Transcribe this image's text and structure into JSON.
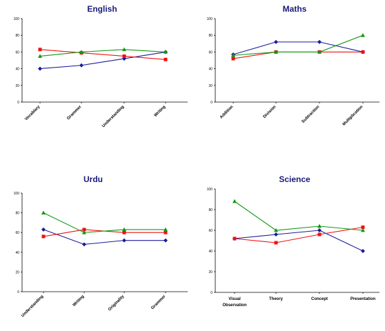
{
  "chart_data": [
    {
      "type": "line",
      "title": "English",
      "categories": [
        "Vocablary",
        "Grammer",
        "Understanding",
        "Writing"
      ],
      "ylim": [
        0,
        100
      ],
      "yticks": [
        "0",
        "20",
        "40",
        "60",
        "80",
        "100"
      ],
      "legend": "none",
      "grid": false,
      "series": [
        {
          "color": "#1a1a99",
          "marker": "diamond",
          "values": [
            40,
            44,
            52,
            60
          ]
        },
        {
          "color": "#ee1111",
          "marker": "square",
          "values": [
            63,
            59,
            55,
            51
          ]
        },
        {
          "color": "#119911",
          "marker": "triangle",
          "values": [
            55,
            60,
            63,
            60
          ]
        }
      ]
    },
    {
      "type": "line",
      "title": "Maths",
      "categories": [
        "Addition",
        "Division",
        "Subtraction",
        "Multiplication"
      ],
      "ylim": [
        0,
        100
      ],
      "yticks": [
        "0",
        "20",
        "40",
        "60",
        "80",
        "100"
      ],
      "legend": "none",
      "grid": false,
      "series": [
        {
          "color": "#1a1a99",
          "marker": "diamond",
          "values": [
            57,
            72,
            72,
            60
          ]
        },
        {
          "color": "#ee1111",
          "marker": "square",
          "values": [
            52,
            60,
            60,
            60
          ]
        },
        {
          "color": "#119911",
          "marker": "triangle",
          "values": [
            56,
            60,
            60,
            80
          ]
        }
      ]
    },
    {
      "type": "line",
      "title": "Urdu",
      "categories": [
        "Understanding",
        "Writing",
        "Originality",
        "Grammer"
      ],
      "ylim": [
        0,
        100
      ],
      "yticks": [
        "0",
        "20",
        "40",
        "60",
        "80",
        "100"
      ],
      "legend": "none",
      "grid": false,
      "series": [
        {
          "color": "#1a1a99",
          "marker": "diamond",
          "values": [
            63,
            48,
            52,
            52
          ]
        },
        {
          "color": "#ee1111",
          "marker": "square",
          "values": [
            56,
            63,
            60,
            60
          ]
        },
        {
          "color": "#119911",
          "marker": "triangle",
          "values": [
            80,
            60,
            63,
            63
          ]
        }
      ]
    },
    {
      "type": "line",
      "title": "Science",
      "categories": [
        "Visual Observation",
        "Theory",
        "Concept",
        "Presentation"
      ],
      "ylim": [
        0,
        100
      ],
      "yticks": [
        "0",
        "20",
        "40",
        "60",
        "80",
        "100"
      ],
      "legend": "none",
      "grid": false,
      "series": [
        {
          "color": "#1a1a99",
          "marker": "diamond",
          "values": [
            52,
            56,
            60,
            40
          ]
        },
        {
          "color": "#ee1111",
          "marker": "square",
          "values": [
            52,
            48,
            56,
            63
          ]
        },
        {
          "color": "#119911",
          "marker": "triangle",
          "values": [
            88,
            60,
            64,
            60
          ]
        }
      ]
    }
  ]
}
